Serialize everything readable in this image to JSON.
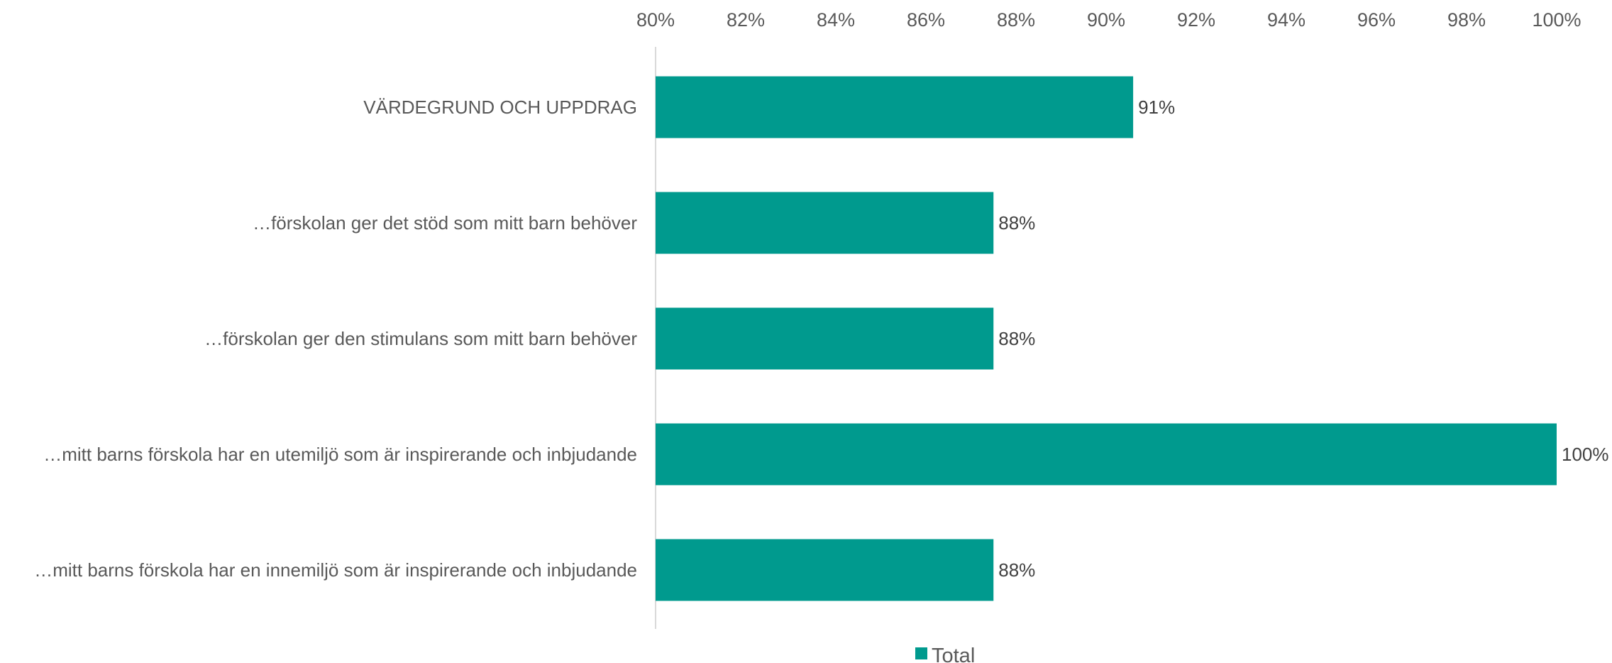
{
  "chart_data": {
    "type": "bar",
    "orientation": "horizontal",
    "categories": [
      "VÄRDEGRUND OCH UPPDRAG",
      "…förskolan ger det stöd som mitt barn behöver",
      "…förskolan ger den stimulans som mitt barn behöver",
      "…mitt barns förskola har en utemiljö som är inspirerande och inbjudande",
      "…mitt barns förskola har en innemiljö som är inspirerande och inbjudande"
    ],
    "series": [
      {
        "name": "Total",
        "color": "#009A8E",
        "values": [
          90.6,
          87.5,
          87.5,
          100,
          87.5
        ],
        "labels": [
          "91%",
          "88%",
          "88%",
          "100%",
          "88%"
        ]
      }
    ],
    "xlim": [
      80,
      100
    ],
    "x_ticks": [
      "80%",
      "82%",
      "84%",
      "86%",
      "88%",
      "90%",
      "92%",
      "94%",
      "96%",
      "98%",
      "100%"
    ],
    "x_tick_values": [
      80,
      82,
      84,
      86,
      88,
      90,
      92,
      94,
      96,
      98,
      100
    ],
    "x_axis_position": "top",
    "grid": false,
    "legend_position": "bottom-center",
    "title": "",
    "xlabel": "",
    "ylabel": ""
  }
}
